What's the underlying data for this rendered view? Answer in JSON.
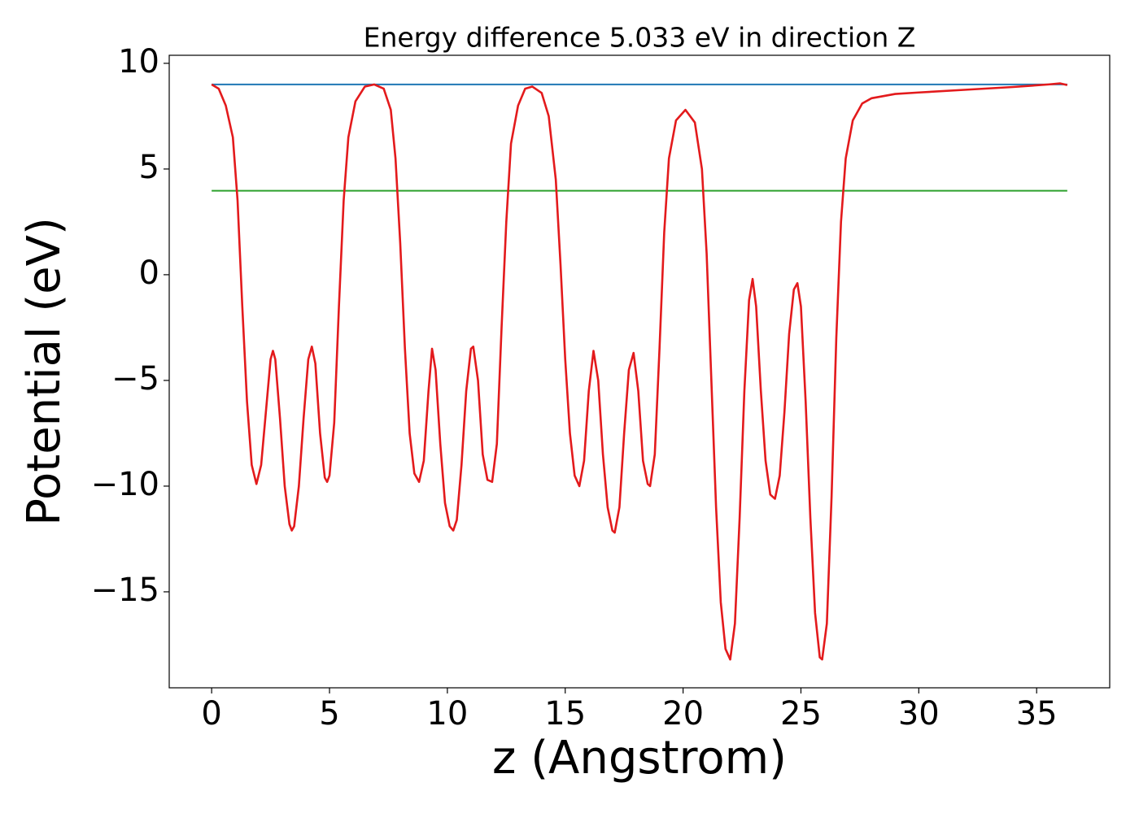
{
  "chart_data": {
    "type": "line",
    "title": "Energy difference 5.033 eV in direction Z",
    "xlabel": "z (Angstrom)",
    "ylabel": "Potential (eV)",
    "xlim": [
      -1.8,
      38.1
    ],
    "ylim": [
      -19.54,
      10.38
    ],
    "xticks": [
      0,
      5,
      10,
      15,
      20,
      25,
      30,
      35
    ],
    "yticks": [
      {
        "value": -15,
        "label": "−15"
      },
      {
        "value": -10,
        "label": "−10"
      },
      {
        "value": -5,
        "label": "−5"
      },
      0,
      5,
      10
    ],
    "series": [
      {
        "color": "#1f77b4",
        "x": [
          0,
          36.3
        ],
        "values": [
          9.0,
          9.0
        ]
      },
      {
        "color": "#2ca02c",
        "x": [
          0,
          36.3
        ],
        "values": [
          3.97,
          3.97
        ]
      },
      {
        "color": "#e31a1c",
        "x": [
          0,
          0.3,
          0.6,
          0.9,
          1.1,
          1.3,
          1.5,
          1.7,
          1.9,
          2.1,
          2.3,
          2.5,
          2.6,
          2.7,
          2.9,
          3.1,
          3.3,
          3.4,
          3.5,
          3.7,
          3.9,
          4.1,
          4.25,
          4.4,
          4.6,
          4.8,
          4.9,
          5.0,
          5.2,
          5.4,
          5.6,
          5.8,
          6.1,
          6.5,
          6.9,
          7.3,
          7.6,
          7.8,
          8.0,
          8.2,
          8.4,
          8.6,
          8.8,
          9.0,
          9.2,
          9.35,
          9.5,
          9.7,
          9.9,
          10.1,
          10.25,
          10.4,
          10.6,
          10.8,
          11.0,
          11.1,
          11.3,
          11.5,
          11.7,
          11.9,
          12.1,
          12.3,
          12.5,
          12.7,
          13.0,
          13.3,
          13.6,
          14.0,
          14.3,
          14.6,
          14.8,
          15.0,
          15.2,
          15.4,
          15.6,
          15.8,
          16.0,
          16.2,
          16.4,
          16.6,
          16.8,
          17.0,
          17.1,
          17.3,
          17.5,
          17.7,
          17.9,
          18.1,
          18.3,
          18.5,
          18.6,
          18.8,
          19.0,
          19.2,
          19.4,
          19.7,
          20.1,
          20.5,
          20.8,
          21.0,
          21.2,
          21.4,
          21.6,
          21.8,
          22.0,
          22.2,
          22.4,
          22.6,
          22.8,
          22.95,
          23.1,
          23.3,
          23.5,
          23.7,
          23.9,
          24.1,
          24.3,
          24.5,
          24.7,
          24.85,
          25.0,
          25.2,
          25.4,
          25.6,
          25.8,
          25.9,
          26.1,
          26.3,
          26.5,
          26.7,
          26.9,
          27.2,
          27.6,
          28.0,
          29.0,
          30.0,
          32.0,
          34.0,
          35.5,
          36.0,
          36.3
        ],
        "values": [
          9.0,
          8.8,
          8.0,
          6.5,
          3.5,
          -1.5,
          -6.0,
          -9.0,
          -9.9,
          -9.0,
          -6.5,
          -4.0,
          -3.6,
          -4.0,
          -6.8,
          -10.0,
          -11.8,
          -12.1,
          -11.9,
          -10.0,
          -6.8,
          -4.0,
          -3.4,
          -4.2,
          -7.5,
          -9.6,
          -9.8,
          -9.5,
          -7.0,
          -1.5,
          3.5,
          6.5,
          8.2,
          8.9,
          9.0,
          8.8,
          7.8,
          5.5,
          1.5,
          -3.5,
          -7.5,
          -9.4,
          -9.8,
          -8.8,
          -5.5,
          -3.5,
          -4.5,
          -8.0,
          -10.8,
          -11.9,
          -12.1,
          -11.6,
          -9.0,
          -5.5,
          -3.5,
          -3.4,
          -5.0,
          -8.5,
          -9.7,
          -9.8,
          -8.0,
          -2.5,
          2.5,
          6.2,
          8.0,
          8.8,
          8.9,
          8.6,
          7.5,
          4.5,
          0.5,
          -4.0,
          -7.5,
          -9.5,
          -10.0,
          -8.8,
          -5.5,
          -3.6,
          -5.0,
          -8.5,
          -11.0,
          -12.1,
          -12.2,
          -11.0,
          -7.5,
          -4.5,
          -3.7,
          -5.5,
          -8.8,
          -9.9,
          -10.0,
          -8.5,
          -3.5,
          2.0,
          5.5,
          7.3,
          7.8,
          7.2,
          5.0,
          1.0,
          -5.0,
          -11.0,
          -15.5,
          -17.7,
          -18.2,
          -16.5,
          -11.5,
          -5.5,
          -1.2,
          -0.2,
          -1.5,
          -5.5,
          -8.8,
          -10.4,
          -10.6,
          -9.5,
          -6.5,
          -2.8,
          -0.7,
          -0.4,
          -1.5,
          -6.0,
          -11.5,
          -16.0,
          -18.1,
          -18.2,
          -16.5,
          -10.5,
          -3.0,
          2.5,
          5.5,
          7.3,
          8.1,
          8.35,
          8.55,
          8.62,
          8.75,
          8.88,
          9.0,
          9.05,
          8.97
        ]
      }
    ]
  }
}
